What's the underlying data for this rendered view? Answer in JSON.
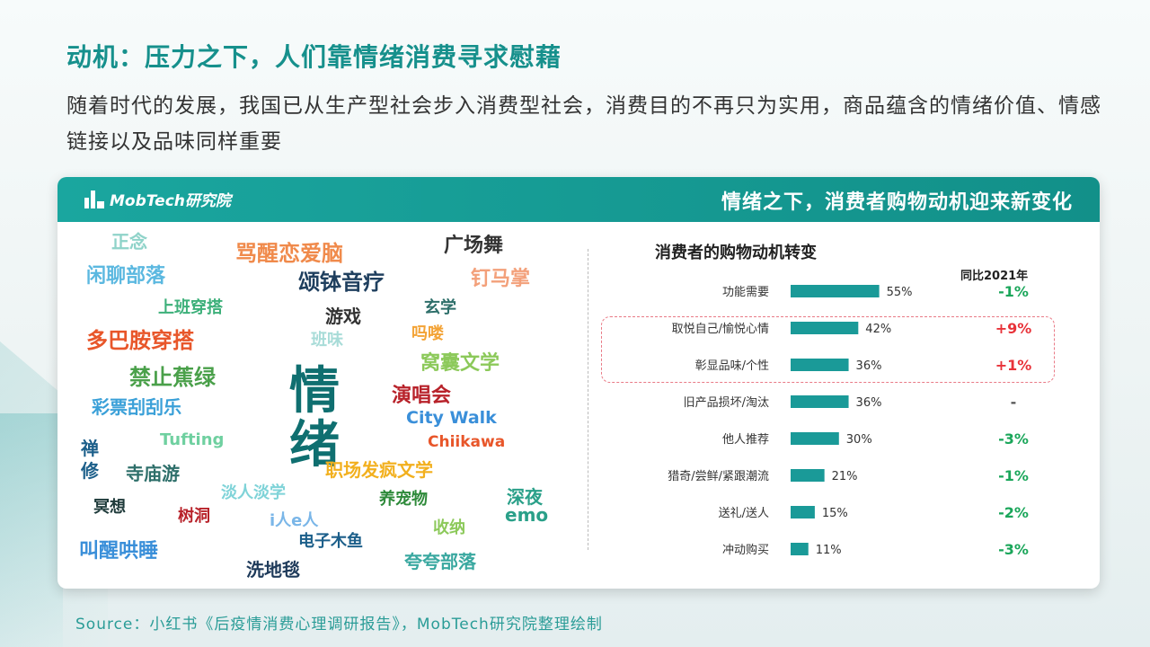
{
  "headline": "动机：压力之下，人们靠情绪消费寻求慰藉",
  "intro": "随着时代的发展，我国已从生产型社会步入消费型社会，消费目的不再只为实用，商品蕴含的情绪价值、情感链接以及品味同样重要",
  "card": {
    "logo_text": "MobTech研究院",
    "title": "情绪之下，消费者购物动机迎来新变化"
  },
  "word_cloud": [
    {
      "text": "正念",
      "color": "#8fd3c9"
    },
    {
      "text": "骂醒恋爱脑",
      "color": "#f08a4b"
    },
    {
      "text": "广场舞",
      "color": "#333333"
    },
    {
      "text": "闲聊部落",
      "color": "#5bb8e0"
    },
    {
      "text": "颂钵音疗",
      "color": "#1f3f5e"
    },
    {
      "text": "钉马掌",
      "color": "#f3a07a"
    },
    {
      "text": "上班穿搭",
      "color": "#3db07a"
    },
    {
      "text": "玄学",
      "color": "#2e6f6a"
    },
    {
      "text": "游戏",
      "color": "#333333"
    },
    {
      "text": "多巴胺穿搭",
      "color": "#e8562a"
    },
    {
      "text": "班味",
      "color": "#a8dcd8"
    },
    {
      "text": "吗喽",
      "color": "#f3a336"
    },
    {
      "text": "窝囊文学",
      "color": "#8cc95a"
    },
    {
      "text": "禁止蕉绿",
      "color": "#4aa04a"
    },
    {
      "text": "情",
      "color": "#0f6f70"
    },
    {
      "text": "绪",
      "color": "#0f6f70"
    },
    {
      "text": "演唱会",
      "color": "#b8222a"
    },
    {
      "text": "彩票刮刮乐",
      "color": "#3aa0d8"
    },
    {
      "text": "City Walk",
      "color": "#3a8fd9"
    },
    {
      "text": "Tufting",
      "color": "#6fd0a0"
    },
    {
      "text": "Chiikawa",
      "color": "#e8562a"
    },
    {
      "text": "禅",
      "color": "#1c5f8a"
    },
    {
      "text": "修",
      "color": "#1c5f8a"
    },
    {
      "text": "寺庙游",
      "color": "#2e6f6a"
    },
    {
      "text": "职场发疯文学",
      "color": "#f2b01e"
    },
    {
      "text": "淡人淡学",
      "color": "#7fd3d8"
    },
    {
      "text": "养宠物",
      "color": "#2e8a3a"
    },
    {
      "text": "深夜",
      "color": "#2aa089"
    },
    {
      "text": "emo",
      "color": "#2aa089"
    },
    {
      "text": "冥想",
      "color": "#1e3a3a"
    },
    {
      "text": "树洞",
      "color": "#b8222a"
    },
    {
      "text": "i人e人",
      "color": "#7ab6e8"
    },
    {
      "text": "收纳",
      "color": "#8cc95a"
    },
    {
      "text": "电子木鱼",
      "color": "#1c5f8a"
    },
    {
      "text": "叫醒哄睡",
      "color": "#3a8fd9"
    },
    {
      "text": "洗地毯",
      "color": "#1e3a5a"
    },
    {
      "text": "夸夸部落",
      "color": "#3aa8a0"
    }
  ],
  "chart_data": {
    "type": "bar",
    "orientation": "horizontal",
    "title": "消费者的购物动机转变",
    "yoy_label": "同比2021年",
    "categories": [
      "功能需要",
      "取悦自己/愉悦心情",
      "彰显品味/个性",
      "旧产品损坏/淘汰",
      "他人推荐",
      "猎奇/尝鲜/紧跟潮流",
      "送礼/送人",
      "冲动购买"
    ],
    "values": [
      55,
      42,
      36,
      36,
      30,
      21,
      15,
      11
    ],
    "value_labels": [
      "55%",
      "42%",
      "36%",
      "36%",
      "30%",
      "21%",
      "15%",
      "11%"
    ],
    "yoy": [
      "-1%",
      "+9%",
      "+1%",
      "-",
      "-3%",
      "-1%",
      "-2%",
      "-3%"
    ],
    "highlighted": [
      "取悦自己/愉悦心情",
      "彰显品味/个性"
    ],
    "bar_color": "#1a9a98",
    "positive_color": "#e8333a",
    "negative_color": "#1aa65a",
    "neutral_color": "#555555"
  },
  "source": "Source：小红书《后疫情消费心理调研报告》，MobTech研究院整理绘制"
}
